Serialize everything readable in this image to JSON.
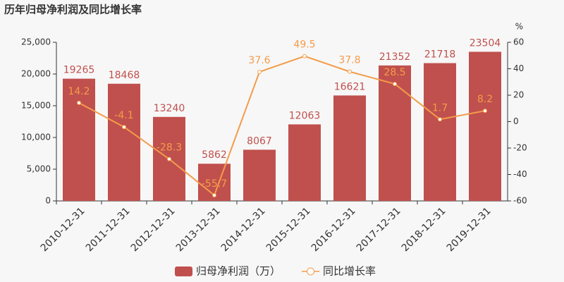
{
  "chart_data": {
    "type": "bar",
    "title": "历年归母净利润及同比增长率",
    "categories": [
      "2010-12-31",
      "2011-12-31",
      "2012-12-31",
      "2013-12-31",
      "2014-12-31",
      "2015-12-31",
      "2016-12-31",
      "2017-12-31",
      "2018-12-31",
      "2019-12-31"
    ],
    "series": [
      {
        "name": "归母净利润（万）",
        "type": "bar",
        "color": "#c0504d",
        "values": [
          19265,
          18468,
          13240,
          5862,
          8067,
          12063,
          16621,
          21352,
          21718,
          23504
        ]
      },
      {
        "name": "同比增长率",
        "type": "line",
        "axis": "y2",
        "color": "#f39c4a",
        "values": [
          14.2,
          -4.1,
          -28.3,
          -55.7,
          37.6,
          49.5,
          37.8,
          28.5,
          1.7,
          8.2
        ]
      }
    ],
    "ylim": [
      0,
      25000
    ],
    "yticks": [
      0,
      {
        "value": 5000,
        "label": "5,000"
      },
      {
        "value": 10000,
        "label": "10,000"
      },
      {
        "value": 15000,
        "label": "15,000"
      },
      {
        "value": 20000,
        "label": "20,000"
      },
      {
        "value": 25000,
        "label": "25,000"
      }
    ],
    "y2lim": [
      -60,
      60
    ],
    "y2ticks": [
      -60,
      -40,
      -20,
      0,
      20,
      40,
      60
    ],
    "y2_label": "%",
    "grid": false,
    "legend": "bottom"
  }
}
